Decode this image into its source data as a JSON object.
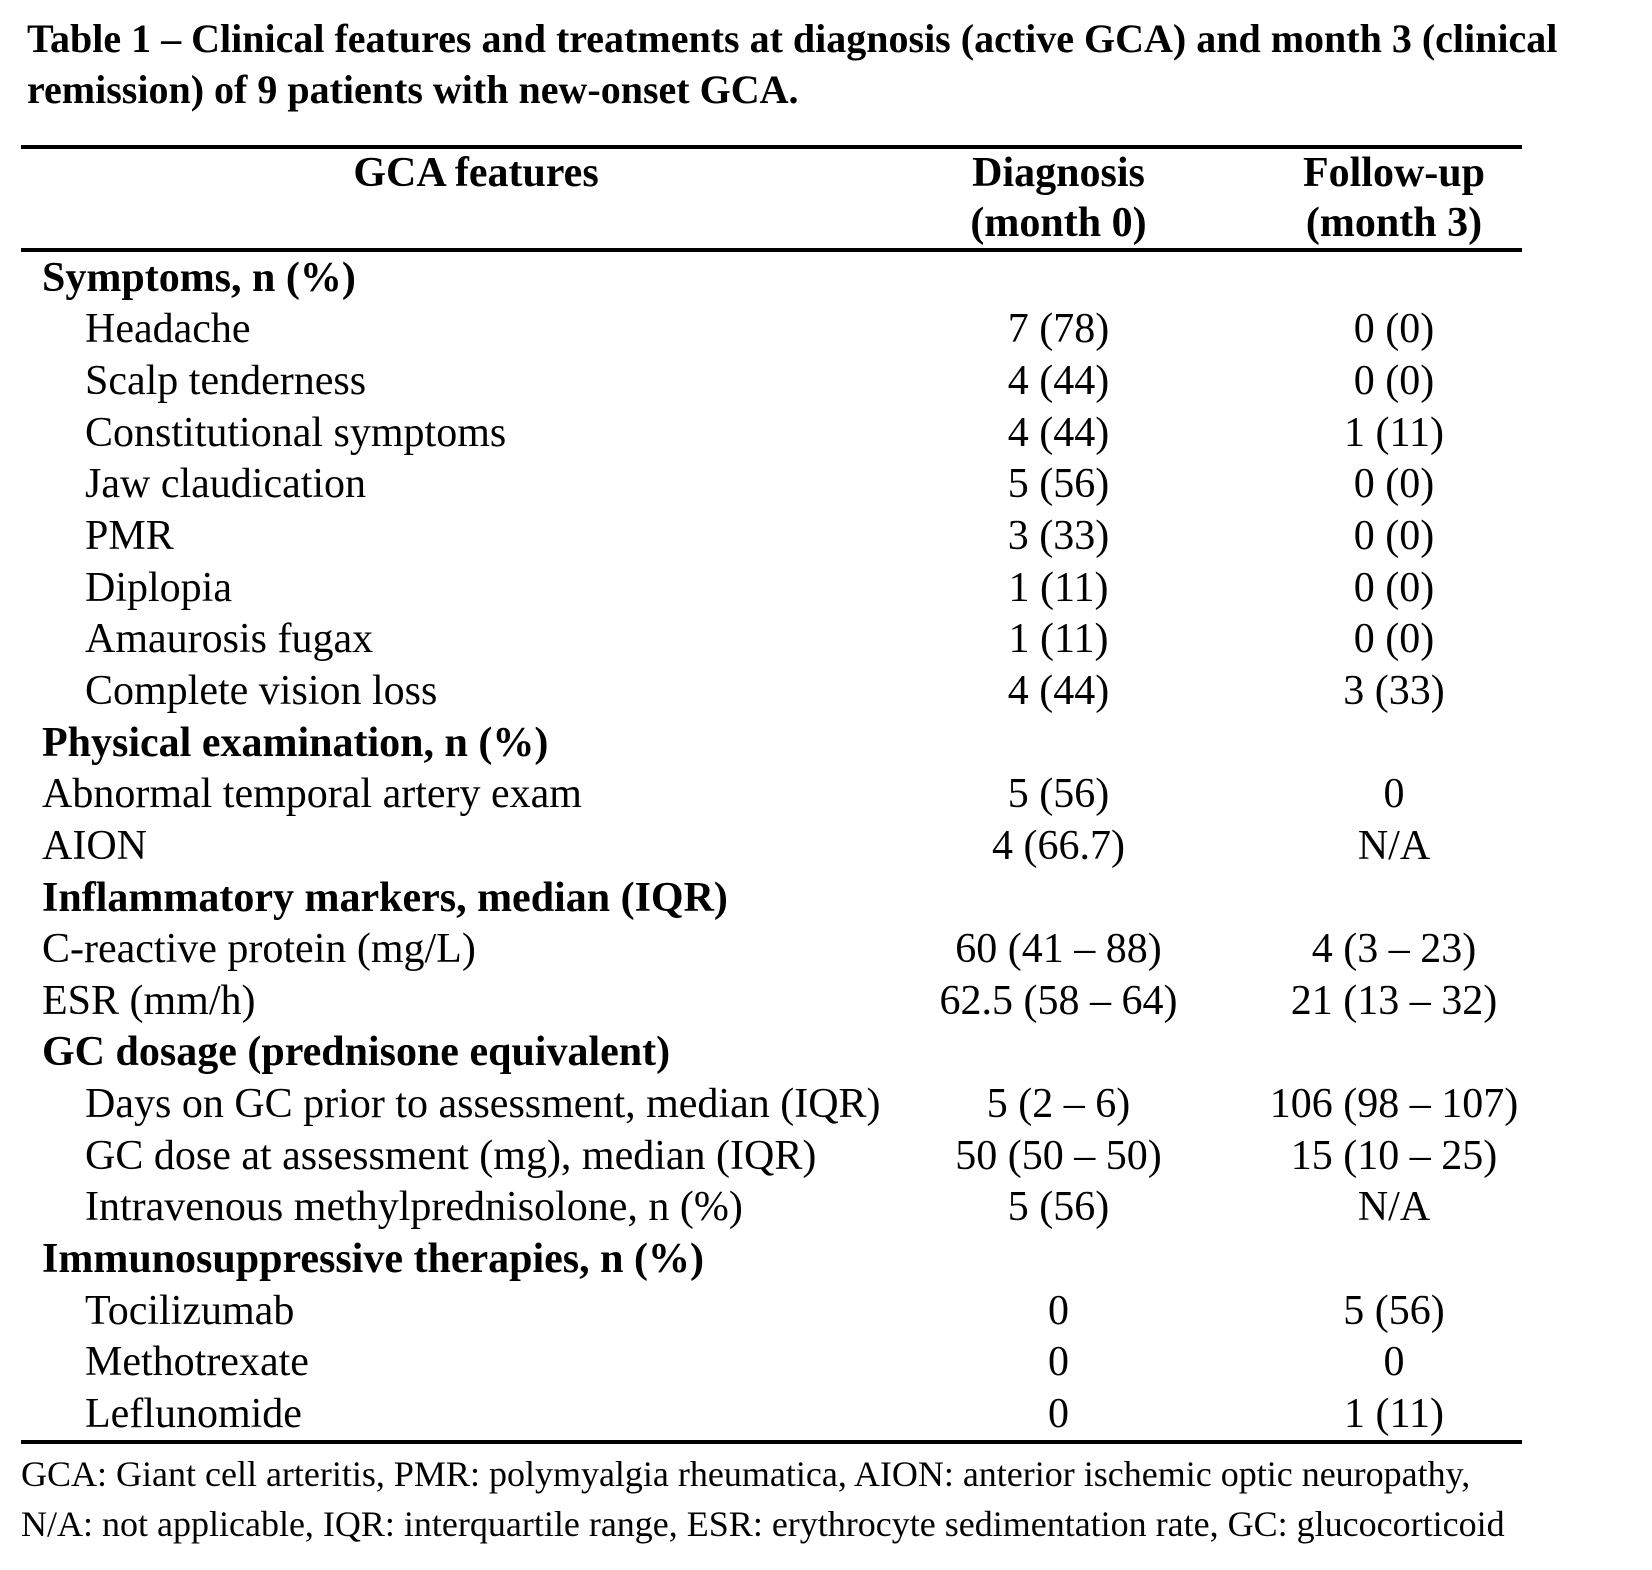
{
  "title": "Table 1 – Clinical features and treatments at diagnosis (active GCA) and month 3 (clinical remission) of 9 patients with new-onset GCA.",
  "header": {
    "feature_col": "GCA features",
    "diagnosis_line1": "Diagnosis",
    "diagnosis_line2": "(month 0)",
    "followup_line1": "Follow-up",
    "followup_line2": "(month 3)"
  },
  "rows": [
    {
      "label": "Symptoms, n (%)",
      "diagnosis": "",
      "followup": ""
    },
    {
      "label": "Headache",
      "diagnosis": "7 (78)",
      "followup": "0 (0)"
    },
    {
      "label": "Scalp tenderness",
      "diagnosis": "4 (44)",
      "followup": "0 (0)"
    },
    {
      "label": "Constitutional symptoms",
      "diagnosis": "4 (44)",
      "followup": "1 (11)"
    },
    {
      "label": "Jaw claudication",
      "diagnosis": "5 (56)",
      "followup": "0 (0)"
    },
    {
      "label": "PMR",
      "diagnosis": "3 (33)",
      "followup": "0 (0)"
    },
    {
      "label": "Diplopia",
      "diagnosis": "1 (11)",
      "followup": "0 (0)"
    },
    {
      "label": "Amaurosis fugax",
      "diagnosis": "1 (11)",
      "followup": "0 (0)"
    },
    {
      "label": "Complete vision loss",
      "diagnosis": "4 (44)",
      "followup": "3 (33)"
    },
    {
      "label": "Physical examination, n (%)",
      "diagnosis": "",
      "followup": ""
    },
    {
      "label": "Abnormal temporal artery exam",
      "diagnosis": "5 (56)",
      "followup": "0"
    },
    {
      "label": "AION",
      "diagnosis": "4 (66.7)",
      "followup": "N/A"
    },
    {
      "label": "Inflammatory markers, median (IQR)",
      "diagnosis": "",
      "followup": ""
    },
    {
      "label": "C-reactive protein (mg/L)",
      "diagnosis": "60 (41 – 88)",
      "followup": "4 (3 – 23)"
    },
    {
      "label": "ESR (mm/h)",
      "diagnosis": "62.5 (58 – 64)",
      "followup": "21 (13 – 32)"
    },
    {
      "label": "GC dosage (prednisone equivalent)",
      "diagnosis": "",
      "followup": ""
    },
    {
      "label": "Days on GC prior to assessment, median (IQR)",
      "diagnosis": "5 (2 – 6)",
      "followup": "106 (98 – 107)"
    },
    {
      "label": "GC dose at assessment (mg), median (IQR)",
      "diagnosis": "50 (50 – 50)",
      "followup": "15 (10 – 25)"
    },
    {
      "label": "Intravenous methylprednisolone, n (%)",
      "diagnosis": "5 (56)",
      "followup": "N/A"
    },
    {
      "label": "Immunosuppressive therapies, n (%)",
      "diagnosis": "",
      "followup": ""
    },
    {
      "label": "Tocilizumab",
      "diagnosis": "0",
      "followup": "5 (56)"
    },
    {
      "label": "Methotrexate",
      "diagnosis": "0",
      "followup": "0"
    },
    {
      "label": "Leflunomide",
      "diagnosis": "0",
      "followup": "1 (11)"
    }
  ],
  "footnote_line1": "GCA: Giant cell arteritis, PMR: polymyalgia rheumatica, AION: anterior ischemic optic neuropathy,",
  "footnote_line2": "N/A: not applicable, IQR: interquartile range, ESR: erythrocyte sedimentation rate, GC: glucocorticoid",
  "colors": {
    "text": "#000000",
    "background": "#ffffff",
    "rule": "#000000"
  }
}
